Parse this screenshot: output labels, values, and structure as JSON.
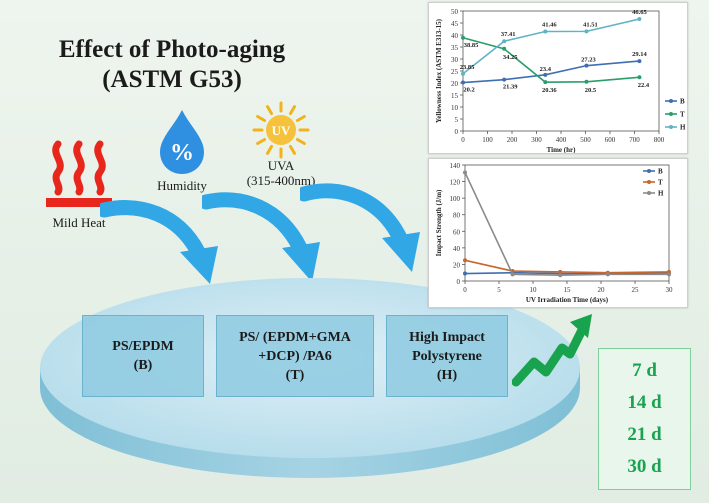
{
  "title": {
    "line1": "Effect of Photo-aging",
    "line2": "(ASTM G53)"
  },
  "conditions": {
    "heat_label": "Mild Heat",
    "humidity_label": "Humidity",
    "uva_label_1": "UVA",
    "uva_label_2": "(315-400nm)",
    "uv_badge": "UV",
    "humidity_symbol": "%"
  },
  "samples": [
    {
      "line1": "PS/EPDM",
      "line2": "(B)",
      "line3": ""
    },
    {
      "line1": "PS/ (EPDM+GMA",
      "line2": "+DCP) /PA6",
      "line3": "(T)"
    },
    {
      "line1": "High Impact",
      "line2": "Polystyrene",
      "line3": "(H)"
    }
  ],
  "durations": [
    "7 d",
    "14 d",
    "21 d",
    "30 d"
  ],
  "colors": {
    "arrow": "#32a7e6",
    "disk": "#b6dcea",
    "box": "#8ecae0",
    "green": "#19a34e",
    "heat": "#e8261c",
    "drop": "#2f8fe0",
    "sun": "#f3b21a",
    "series_B": "#3f6fb0",
    "series_T": "#2a9d6a",
    "series_H": "#5fb3c6",
    "impact_B": "#3f6fb0",
    "impact_T": "#c8662b",
    "impact_H": "#8a8a8a"
  },
  "icons": [
    "heat-icon",
    "humidity-drop-icon",
    "uv-sun-icon",
    "curved-arrow-icon",
    "growth-arrow-icon"
  ],
  "chart_data": [
    {
      "type": "line",
      "title": "",
      "xlabel": "Time (hr)",
      "ylabel": "Yellowness Index (ASTM E313-15)",
      "xlim": [
        0,
        800
      ],
      "ylim": [
        0,
        50
      ],
      "xticks": [
        0,
        100,
        200,
        300,
        400,
        500,
        600,
        700,
        800
      ],
      "yticks": [
        0,
        5,
        10,
        15,
        20,
        25,
        30,
        35,
        40,
        45,
        50
      ],
      "grid": false,
      "legend": "right",
      "series": [
        {
          "name": "B",
          "x": [
            0,
            168,
            336,
            504,
            720
          ],
          "y": [
            20.2,
            21.39,
            23.4,
            27.23,
            29.14
          ],
          "labels": [
            "20.2",
            "21.39",
            "23.4",
            "27.23",
            "29.14"
          ]
        },
        {
          "name": "T",
          "x": [
            0,
            168,
            336,
            504,
            720
          ],
          "y": [
            38.85,
            34.25,
            20.36,
            20.5,
            22.4
          ],
          "labels": [
            "38.85",
            "34.25",
            "20.36",
            "20.5",
            "22.4"
          ]
        },
        {
          "name": "H",
          "x": [
            0,
            168,
            336,
            504,
            720
          ],
          "y": [
            23.85,
            37.41,
            41.46,
            41.51,
            46.65
          ],
          "labels": [
            "23.85",
            "37.41",
            "41.46",
            "41.51",
            "46.65"
          ]
        }
      ]
    },
    {
      "type": "line",
      "title": "",
      "xlabel": "UV Irradiation Time (days)",
      "ylabel": "Impact Strength (J/m)",
      "xlim": [
        0,
        30
      ],
      "ylim": [
        0,
        140
      ],
      "xticks": [
        0,
        5,
        10,
        15,
        20,
        25,
        30
      ],
      "yticks": [
        0,
        20,
        40,
        60,
        80,
        100,
        120,
        140
      ],
      "grid": false,
      "legend": "top-right",
      "series": [
        {
          "name": "B",
          "x": [
            0,
            7,
            14,
            21,
            30
          ],
          "y": [
            9,
            10,
            9,
            9,
            10
          ]
        },
        {
          "name": "T",
          "x": [
            0,
            7,
            14,
            21,
            30
          ],
          "y": [
            25,
            12,
            11,
            10,
            11
          ]
        },
        {
          "name": "H",
          "x": [
            0,
            7,
            14,
            21,
            30
          ],
          "y": [
            131,
            8,
            7,
            8,
            8
          ]
        }
      ]
    }
  ]
}
